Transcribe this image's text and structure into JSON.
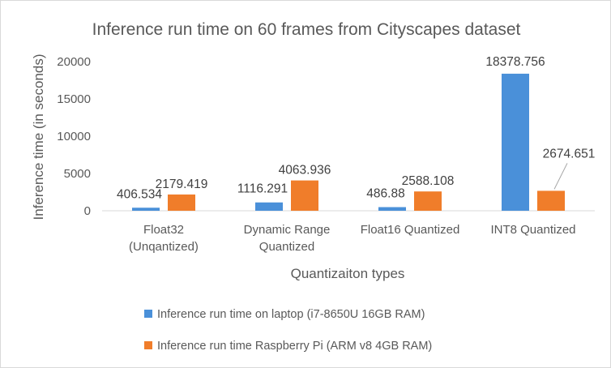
{
  "chart_data": {
    "type": "bar",
    "title": "Inference run time on 60 frames from Cityscapes dataset",
    "xlabel": "Quantizaiton types",
    "ylabel": "Inference time (in seconds)",
    "ylim": [
      0,
      20000
    ],
    "yticks": [
      0,
      5000,
      10000,
      15000,
      20000
    ],
    "ytick_labels": [
      "0",
      "5000",
      "10000",
      "15000",
      "20000"
    ],
    "grid": false,
    "legend_position": "bottom",
    "categories": [
      [
        "Float32",
        "(Unqantized)"
      ],
      [
        "Dynamic Range",
        "Quantized"
      ],
      [
        "Float16 Quantized"
      ],
      [
        "INT8 Quantized"
      ]
    ],
    "series": [
      {
        "name": "Inference run time on laptop (i7-8650U 16GB RAM)",
        "color": "#4a90d9",
        "values": [
          406.534,
          1116.291,
          486.88,
          18378.756
        ],
        "labels": [
          "406.534",
          "1116.291",
          "486.88",
          "18378.756"
        ]
      },
      {
        "name": "Inference run time Raspberry Pi (ARM v8 4GB RAM)",
        "color": "#f07d2a",
        "values": [
          2179.419,
          4063.936,
          2588.108,
          2674.651
        ],
        "labels": [
          "2179.419",
          "4063.936",
          "2588.108",
          "2674.651"
        ]
      }
    ]
  }
}
